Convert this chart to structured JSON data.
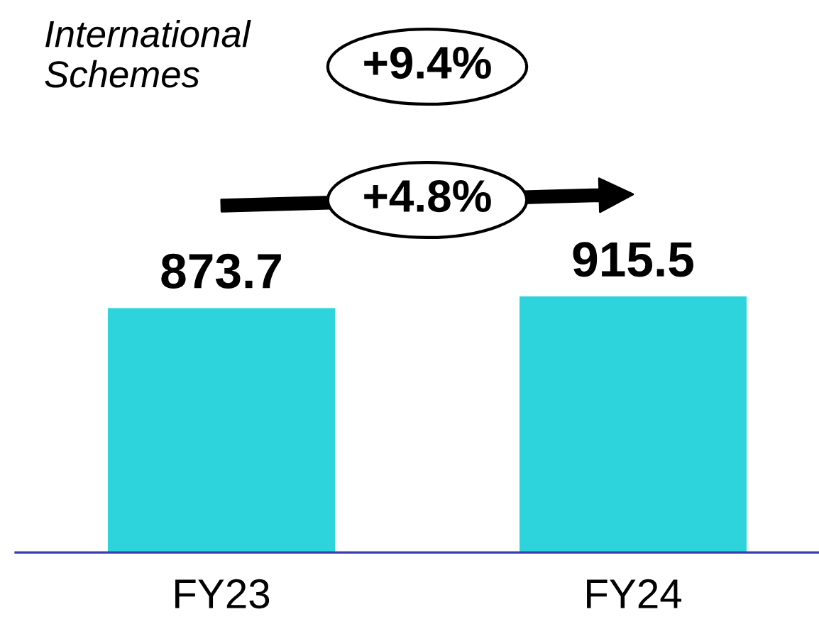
{
  "chart_data": {
    "type": "bar",
    "title": "International\nSchemes",
    "categories": [
      "FY23",
      "FY24"
    ],
    "values": [
      873.7,
      915.5
    ],
    "color": "#2ed4dc",
    "data_labels": true,
    "annotations": [
      "+9.4%",
      "+4.8%"
    ]
  }
}
